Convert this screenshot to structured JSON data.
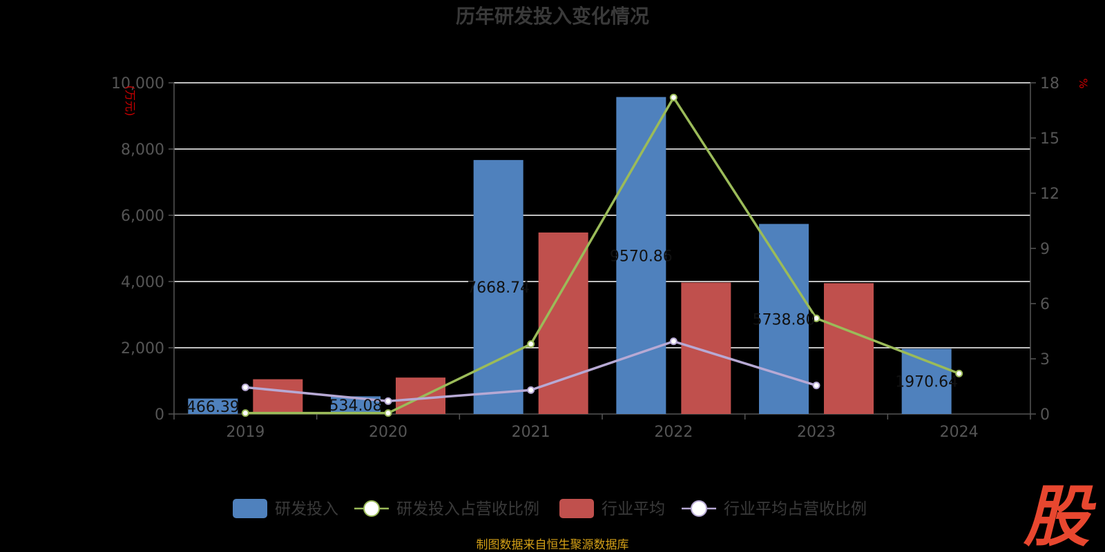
{
  "chart_data": {
    "type": "bar",
    "title": "历年研发投入变化情况",
    "categories": [
      "2019",
      "2020",
      "2021",
      "2022",
      "2023",
      "2024"
    ],
    "y_left": {
      "unit_label": "(万元)",
      "range": [
        0,
        10000
      ],
      "ticks": [
        "0",
        "2,000",
        "4,000",
        "6,000",
        "8,000",
        "10,000"
      ]
    },
    "y_right": {
      "unit_label": "%",
      "range": [
        0,
        18
      ],
      "ticks": [
        "0",
        "3",
        "6",
        "9",
        "12",
        "15",
        "18"
      ]
    },
    "grid": true,
    "legend_position": "bottom",
    "series": [
      {
        "name": "研发投入",
        "kind": "bar",
        "axis": "left",
        "color": "#4f81bd",
        "values": [
          466.39,
          534.08,
          7668.74,
          9570.86,
          5738.8,
          1970.64
        ],
        "labels": [
          "466.39",
          "534.08",
          "7668.74",
          "9570.86",
          "5738.80",
          "1970.64"
        ]
      },
      {
        "name": "研发投入占营收比例",
        "kind": "line",
        "axis": "right",
        "color": "#9bbb59",
        "values": [
          0.05,
          0.05,
          3.8,
          17.2,
          5.2,
          2.2
        ]
      },
      {
        "name": "行业平均",
        "kind": "bar",
        "axis": "left",
        "color": "#c0504d",
        "values": [
          1050,
          1100,
          5480,
          3970,
          3950,
          null
        ]
      },
      {
        "name": "行业平均占营收比例",
        "kind": "line",
        "axis": "right",
        "color": "#b7a9d4",
        "values": [
          1.45,
          0.7,
          1.3,
          3.95,
          1.55,
          null
        ]
      }
    ]
  },
  "footer": {
    "source": "制图数据来自恒生聚源数据库",
    "logo_text": "股"
  }
}
